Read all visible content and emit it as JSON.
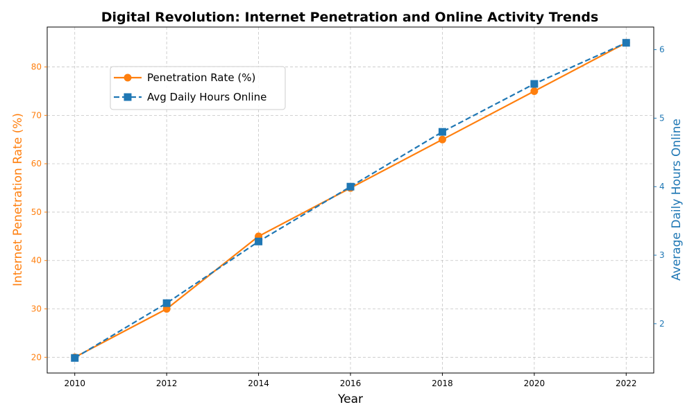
{
  "chart_data": {
    "type": "line",
    "title": "Digital Revolution: Internet Penetration and Online Activity Trends",
    "xlabel": "Year",
    "ylabel_left": "Internet Penetration Rate (%)",
    "ylabel_right": "Average Daily Hours Online",
    "x": [
      2010,
      2012,
      2014,
      2016,
      2018,
      2020,
      2022
    ],
    "xlim": [
      2009.4,
      2022.6
    ],
    "ylim_left": [
      16.75,
      88.25
    ],
    "ylim_right": [
      1.28,
      6.33
    ],
    "x_ticks": [
      2010,
      2012,
      2014,
      2016,
      2018,
      2020,
      2022
    ],
    "y_ticks_left": [
      20,
      30,
      40,
      50,
      60,
      70,
      80
    ],
    "y_ticks_right": [
      2,
      3,
      4,
      5,
      6
    ],
    "grid": true,
    "legend_position": "upper-left",
    "series": [
      {
        "name": "Penetration Rate (%)",
        "axis": "left",
        "values": [
          20,
          30,
          45,
          55,
          65,
          75,
          85
        ],
        "color": "#ff7f0e",
        "line_style": "solid",
        "marker": "circle"
      },
      {
        "name": "Avg Daily Hours Online",
        "axis": "right",
        "values": [
          1.5,
          2.3,
          3.2,
          4.0,
          4.8,
          5.5,
          6.1
        ],
        "color": "#1f77b4",
        "line_style": "dashed",
        "marker": "square"
      }
    ]
  }
}
